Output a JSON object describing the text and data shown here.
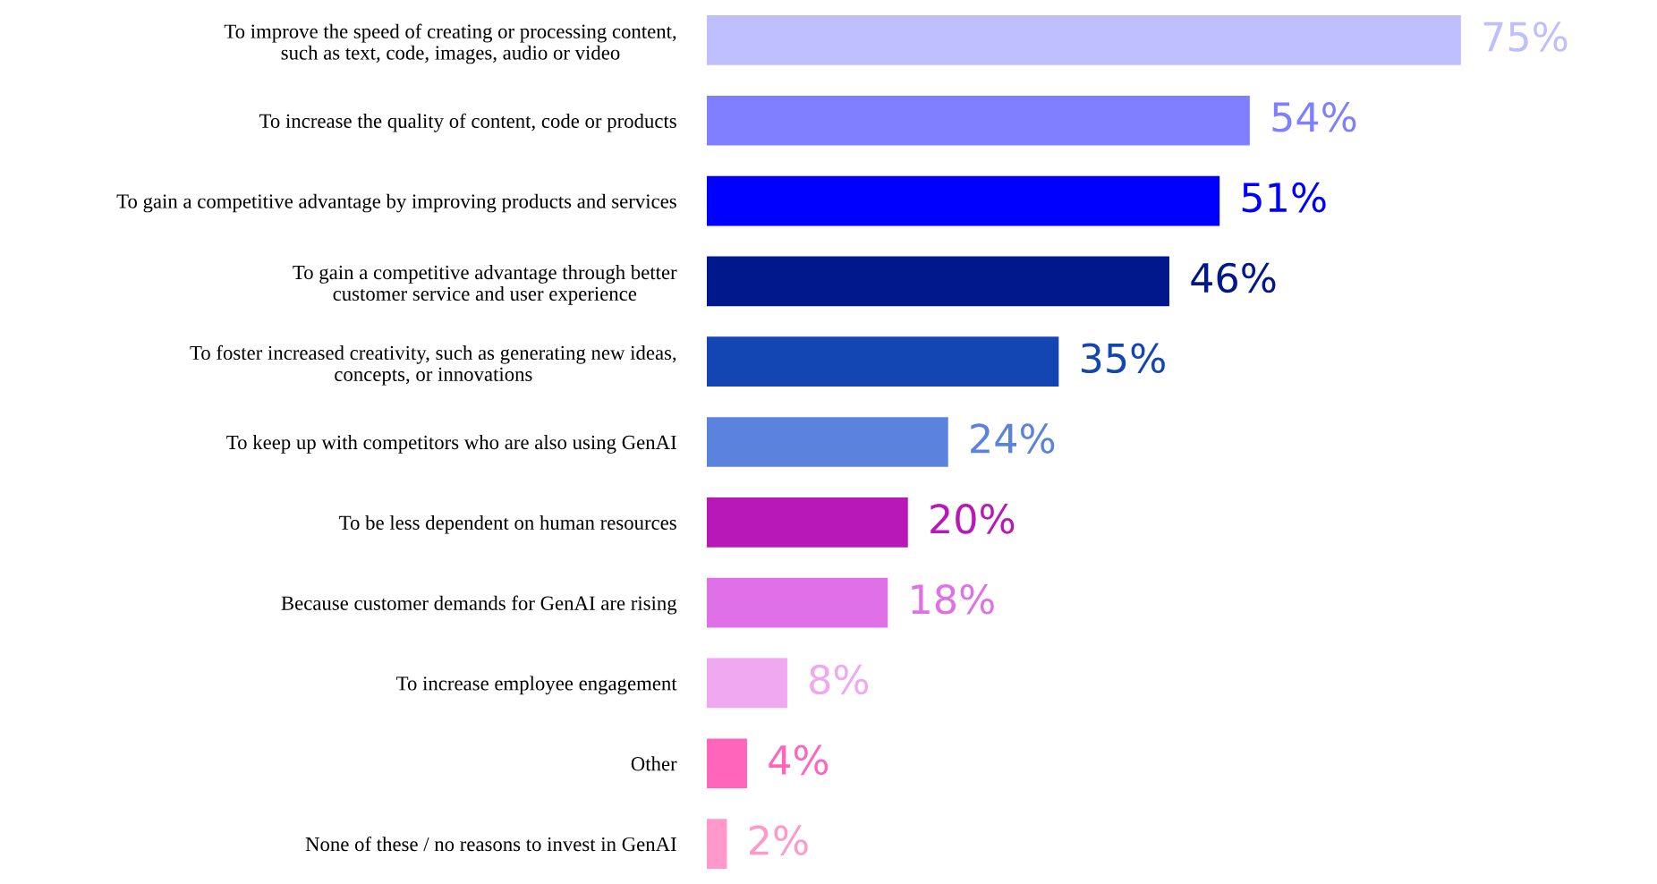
{
  "chart_data": {
    "type": "bar",
    "orientation": "horizontal",
    "value_labels": [
      "75%",
      "54%",
      "51%",
      "46%",
      "35%",
      "24%",
      "20%",
      "18%",
      "8%",
      "4%",
      "2%"
    ],
    "categories": [
      "To improve the speed of creating or processing content,\nsuch as text, code, images, audio or video",
      "To increase the quality of content, code or products",
      "To gain a competitive advantage by improving products and services",
      "To gain a competitive advantage through better\ncustomer service and user experience",
      "To foster increased creativity, such as generating new ideas,\nconcepts, or innovations",
      "To keep up with competitors who are also using GenAI",
      "To be less dependent on human resources",
      "Because customer demands for GenAI are rising",
      "To increase employee engagement",
      "Other",
      "None of these / no reasons to invest in GenAI"
    ],
    "values": [
      75,
      54,
      51,
      46,
      35,
      24,
      20,
      18,
      8,
      4,
      2
    ],
    "colors": [
      "#bfbfff",
      "#7f7fff",
      "#0000ff",
      "#00188c",
      "#1446b3",
      "#5b82dd",
      "#b818b8",
      "#e070e8",
      "#f0a8f0",
      "#ff66bb",
      "#ff99cc"
    ],
    "grid": false,
    "legend": false
  }
}
